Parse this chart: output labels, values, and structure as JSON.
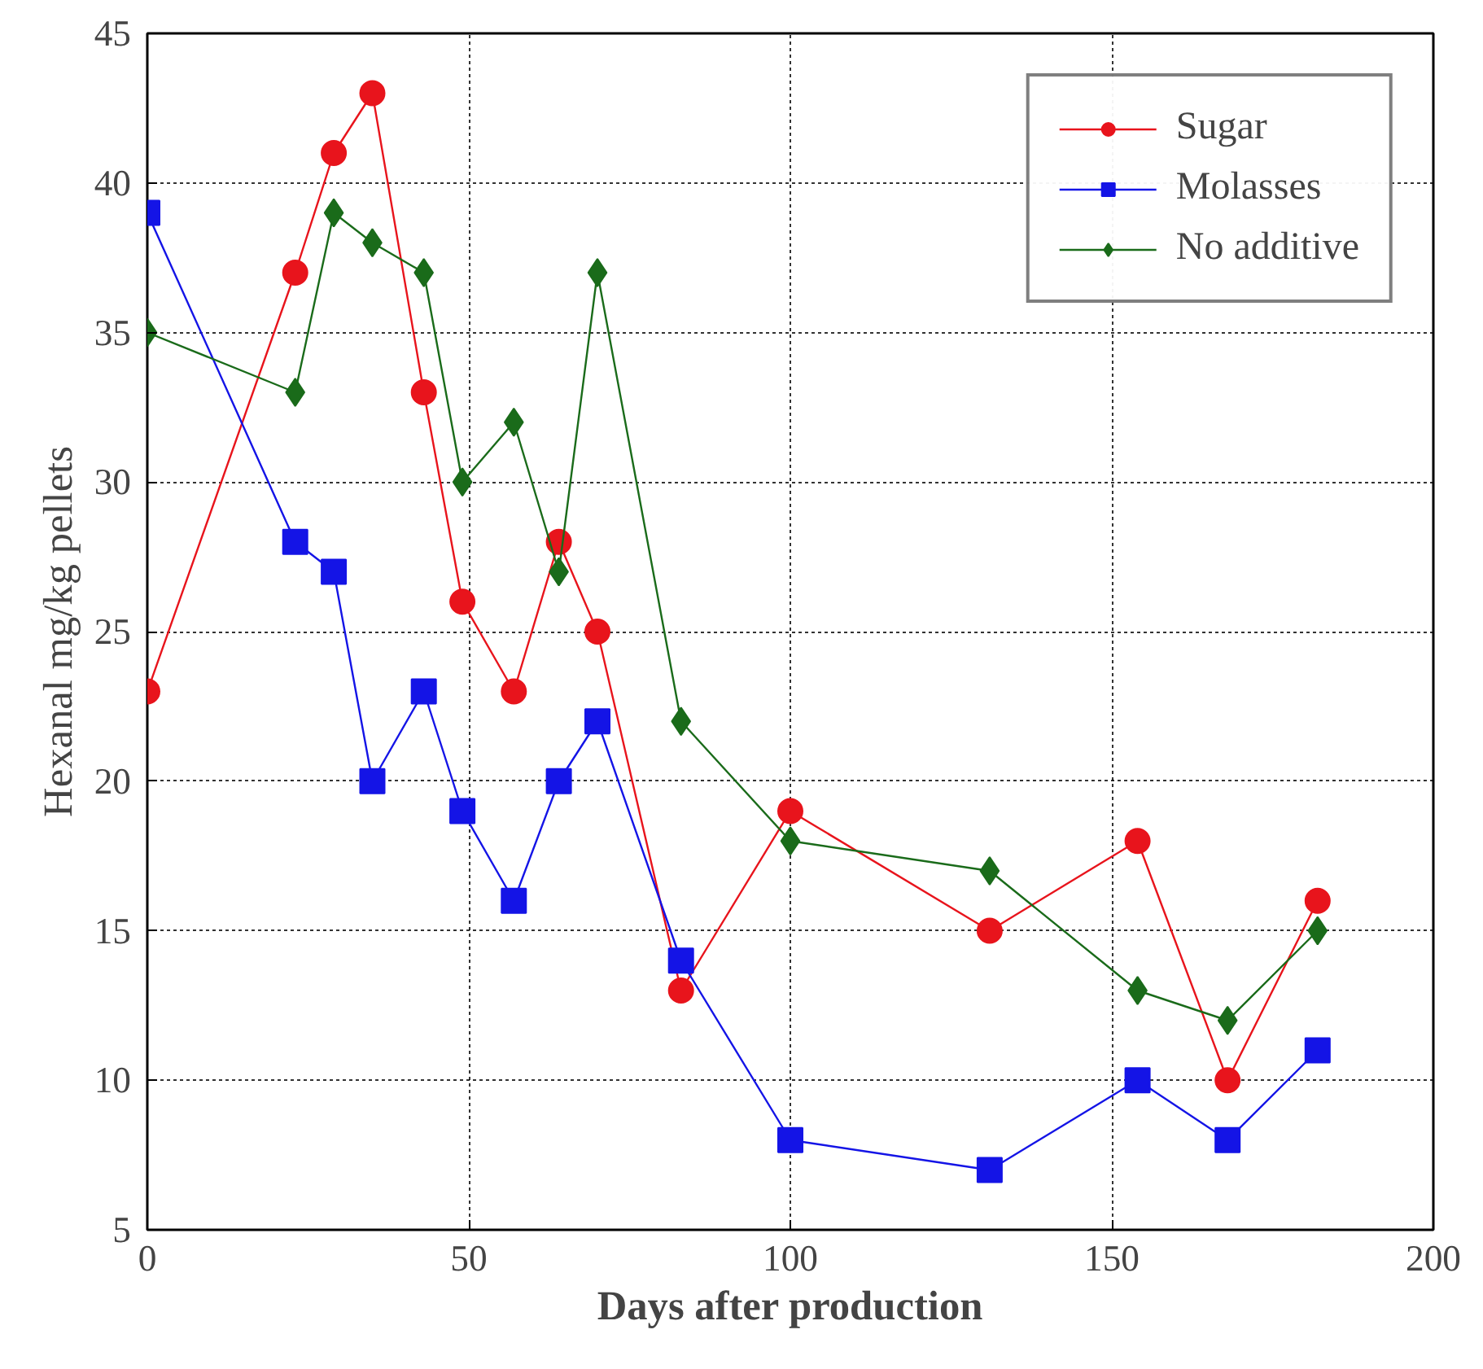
{
  "chart_data": {
    "type": "line",
    "xlabel": "Days after production",
    "ylabel": "Hexanal mg/kg pellets",
    "xlim": [
      0,
      200
    ],
    "xticks": [
      0,
      50,
      100,
      150,
      200
    ],
    "ylim": [
      5,
      45
    ],
    "yticks": [
      5,
      10,
      15,
      20,
      25,
      30,
      35,
      40,
      45
    ],
    "grid": true,
    "legend": "top right",
    "line_style": "solid",
    "x": [
      0,
      23,
      29,
      35,
      43,
      49,
      57,
      64,
      70,
      83,
      100,
      131,
      154,
      168,
      182
    ],
    "series": [
      {
        "name": "Sugar",
        "color": "#e8141c",
        "marker": "circle",
        "values": [
          23,
          37,
          41,
          43,
          33,
          26,
          23,
          28,
          25,
          13,
          19,
          15,
          18,
          10,
          16
        ]
      },
      {
        "name": "Molasses",
        "color": "#1414e6",
        "marker": "square",
        "values": [
          39,
          28,
          27,
          20,
          23,
          19,
          16,
          20,
          22,
          14,
          8,
          7,
          10,
          8,
          11
        ]
      },
      {
        "name": "No additive",
        "color": "#1a6b1a",
        "marker": "diamond",
        "values": [
          35,
          33,
          39,
          38,
          37,
          30,
          32,
          27,
          37,
          22,
          18,
          17,
          13,
          12,
          15
        ]
      }
    ]
  }
}
